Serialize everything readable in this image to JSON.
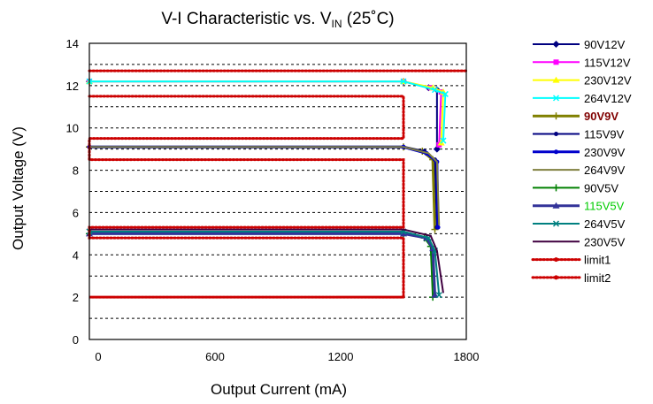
{
  "chart_data": {
    "type": "line",
    "title": {
      "main": "V-I Characteristic vs. V",
      "subscript": "IN",
      "suffix": " (25˚C)"
    },
    "xlabel": "Output Current (mA)",
    "ylabel": "Output Voltage (V)",
    "xlim": [
      0,
      1800
    ],
    "ylim": [
      0,
      14
    ],
    "x_ticks": [
      "0",
      "600",
      "1200",
      "1800"
    ],
    "x_tick_values": [
      0,
      600,
      1200,
      1800
    ],
    "y_ticks": [
      "0",
      "2",
      "4",
      "6",
      "8",
      "10",
      "12",
      "14"
    ],
    "y_tick_values": [
      0,
      2,
      4,
      6,
      8,
      10,
      12,
      14
    ],
    "grid": "horizontal dashed",
    "legend_position": "right",
    "series": [
      {
        "name": "90V12V",
        "color": "#000080",
        "marker": "diamond",
        "x": [
          0,
          1500,
          1620,
          1660,
          1660
        ],
        "y": [
          12.2,
          12.2,
          11.9,
          11.8,
          9.0
        ]
      },
      {
        "name": "115V12V",
        "color": "#ff00ff",
        "marker": "square",
        "x": [
          0,
          1500,
          1630,
          1680,
          1670
        ],
        "y": [
          12.2,
          12.2,
          11.9,
          11.7,
          9.2
        ]
      },
      {
        "name": "230V12V",
        "color": "#ffff00",
        "marker": "triangle",
        "x": [
          0,
          1500,
          1640,
          1690,
          1680
        ],
        "y": [
          12.2,
          12.2,
          11.9,
          11.7,
          9.3
        ]
      },
      {
        "name": "264V12V",
        "color": "#00ffff",
        "marker": "x",
        "x": [
          0,
          1500,
          1650,
          1700,
          1690
        ],
        "y": [
          12.2,
          12.2,
          11.8,
          11.6,
          9.4
        ]
      },
      {
        "name": "90V9V",
        "color": "#808000",
        "marker": "star",
        "x": [
          0,
          1500,
          1590,
          1640,
          1650
        ],
        "y": [
          9.1,
          9.1,
          8.9,
          8.5,
          5.2
        ]
      },
      {
        "name": "115V9V",
        "color": "#000080",
        "marker": "circle",
        "x": [
          0,
          1500,
          1600,
          1650,
          1660
        ],
        "y": [
          9.1,
          9.1,
          8.9,
          8.5,
          5.3
        ]
      },
      {
        "name": "230V9V",
        "color": "#0000cc",
        "marker": "circle",
        "x": [
          0,
          1500,
          1610,
          1660,
          1665
        ],
        "y": [
          9.1,
          9.1,
          8.8,
          8.4,
          5.3
        ]
      },
      {
        "name": "264V9V",
        "color": "#808040",
        "marker": "none",
        "x": [
          0,
          1500,
          1620,
          1660,
          1670
        ],
        "y": [
          9.1,
          9.1,
          8.8,
          8.4,
          5.4
        ]
      },
      {
        "name": "90V5V",
        "color": "#008000",
        "marker": "plus",
        "x": [
          0,
          1500,
          1600,
          1630,
          1640
        ],
        "y": [
          5.0,
          5.0,
          4.8,
          4.4,
          2.0
        ]
      },
      {
        "name": "115V5V",
        "color": "#333399",
        "marker": "triangle",
        "x": [
          0,
          1500,
          1610,
          1640,
          1650
        ],
        "y": [
          5.0,
          5.0,
          4.8,
          4.3,
          2.1
        ]
      },
      {
        "name": "264V5V",
        "color": "#008080",
        "marker": "x",
        "x": [
          0,
          1500,
          1620,
          1650,
          1670
        ],
        "y": [
          5.1,
          5.1,
          4.8,
          4.2,
          2.1
        ]
      },
      {
        "name": "230V5V",
        "color": "#400040",
        "marker": "none",
        "x": [
          0,
          1500,
          1630,
          1660,
          1690
        ],
        "y": [
          5.2,
          5.2,
          4.9,
          4.2,
          2.2
        ]
      },
      {
        "name": "limit1",
        "color": "#cc0000",
        "marker": "dots",
        "x": [
          0,
          1800
        ],
        "y": [
          12.7,
          12.7
        ]
      },
      {
        "name": "limit2",
        "color": "#cc0000",
        "marker": "dots",
        "x": [
          0,
          1500,
          1500,
          0,
          0,
          1500,
          1500,
          0,
          0,
          1500,
          1500,
          0,
          0,
          1500
        ],
        "y": [
          11.5,
          11.5,
          9.5,
          9.5,
          8.5,
          8.5,
          5.3,
          5.3,
          4.8,
          4.8,
          2.0,
          2.0,
          2.0,
          2.0
        ]
      }
    ],
    "legend_label_colors": {
      "90V9V": "#800000",
      "115V5V": "#00cc00"
    }
  }
}
